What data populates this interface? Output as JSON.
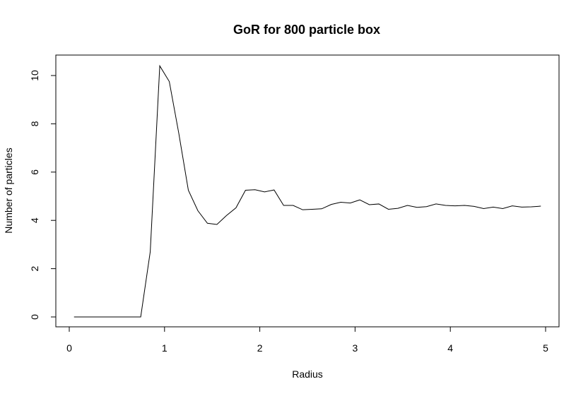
{
  "chart_data": {
    "type": "line",
    "title": "GoR for 800 particle box",
    "xlabel": "Radius",
    "ylabel": "Number of particles",
    "xlim": [
      0,
      5
    ],
    "ylim": [
      0,
      10.4
    ],
    "x_ticks": [
      "0",
      "1",
      "2",
      "3",
      "4",
      "5"
    ],
    "y_ticks": [
      "0",
      "2",
      "4",
      "6",
      "8",
      "10"
    ],
    "grid": false,
    "legend": "none",
    "series": [
      {
        "x": [
          0.05,
          0.15,
          0.25,
          0.35,
          0.45,
          0.55,
          0.65,
          0.75,
          0.85,
          0.95,
          1.05,
          1.15,
          1.25,
          1.35,
          1.45,
          1.55,
          1.65,
          1.75,
          1.85,
          1.95,
          2.05,
          2.15,
          2.25,
          2.35,
          2.45,
          2.55,
          2.65,
          2.75,
          2.85,
          2.95,
          3.05,
          3.15,
          3.25,
          3.35,
          3.45,
          3.55,
          3.65,
          3.75,
          3.85,
          3.95,
          4.05,
          4.15,
          4.25,
          4.35,
          4.45,
          4.55,
          4.65,
          4.75,
          4.85,
          4.95
        ],
        "y": [
          0,
          0,
          0,
          0,
          0,
          0,
          0,
          0,
          2.7,
          10.4,
          9.75,
          7.6,
          5.25,
          4.4,
          3.88,
          3.83,
          4.2,
          4.52,
          5.25,
          5.27,
          5.18,
          5.26,
          4.62,
          4.62,
          4.44,
          4.46,
          4.48,
          4.66,
          4.75,
          4.72,
          4.85,
          4.65,
          4.68,
          4.46,
          4.5,
          4.62,
          4.54,
          4.57,
          4.68,
          4.62,
          4.6,
          4.62,
          4.58,
          4.49,
          4.55,
          4.49,
          4.6,
          4.55,
          4.56,
          4.59
        ]
      }
    ]
  }
}
